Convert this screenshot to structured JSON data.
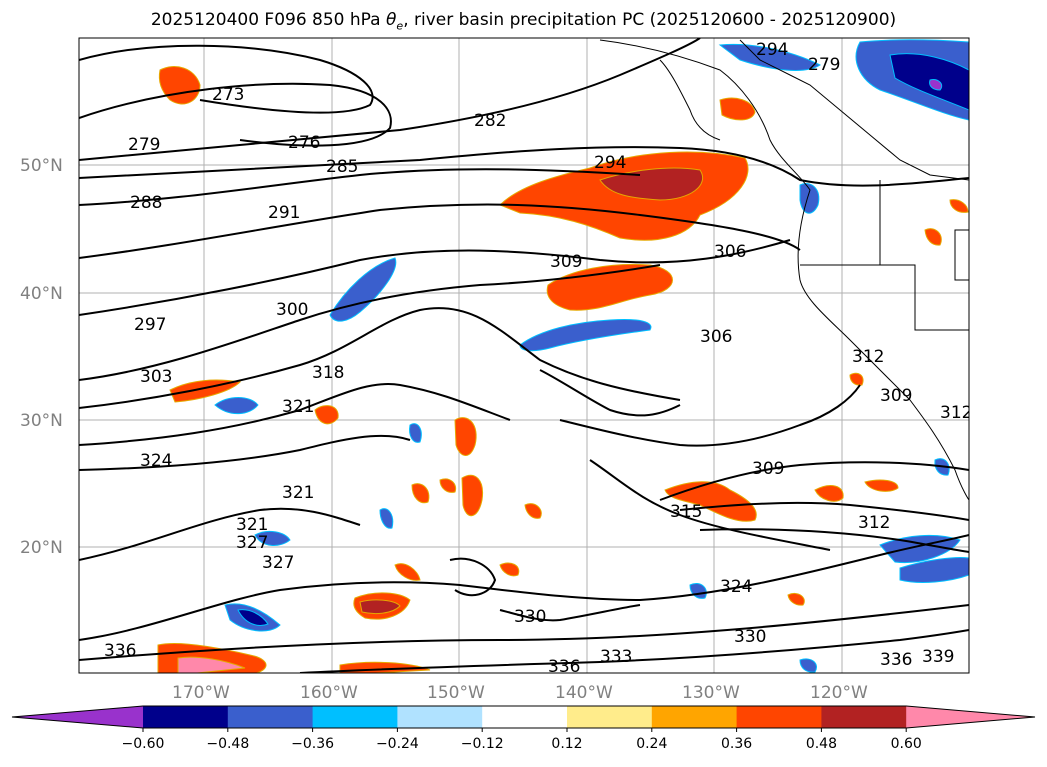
{
  "title_main": "2025120400 F096 850 hPa ",
  "title_theta": "θ",
  "title_sub": "e",
  "title_rest": ", river basin precipitation PC (2025120600 - 2025120900)",
  "lat_labels": [
    "50°N",
    "40°N",
    "30°N",
    "20°N"
  ],
  "lon_labels": [
    "170°W",
    "160°W",
    "150°W",
    "140°W",
    "130°W",
    "120°W"
  ],
  "contour_labels": [
    "273",
    "276",
    "279",
    "279",
    "282",
    "285",
    "288",
    "291",
    "294",
    "294",
    "297",
    "300",
    "303",
    "306",
    "306",
    "309",
    "309",
    "309",
    "312",
    "312",
    "312",
    "315",
    "318",
    "321",
    "321",
    "321",
    "324",
    "324",
    "327",
    "327",
    "330",
    "330",
    "333",
    "336",
    "336",
    "336",
    "339"
  ],
  "colorbar": {
    "ticks": [
      "−0.60",
      "−0.48",
      "−0.36",
      "−0.24",
      "−0.12",
      "0.12",
      "0.24",
      "0.36",
      "0.48",
      "0.60"
    ],
    "colors": [
      "#9932CC",
      "#00008B",
      "#3A5FCD",
      "#00BFFF",
      "#B0E2FF",
      "#FFFFFF",
      "#FFEC8B",
      "#FFA500",
      "#FF4500",
      "#B22222",
      "#FF88AA"
    ]
  }
}
